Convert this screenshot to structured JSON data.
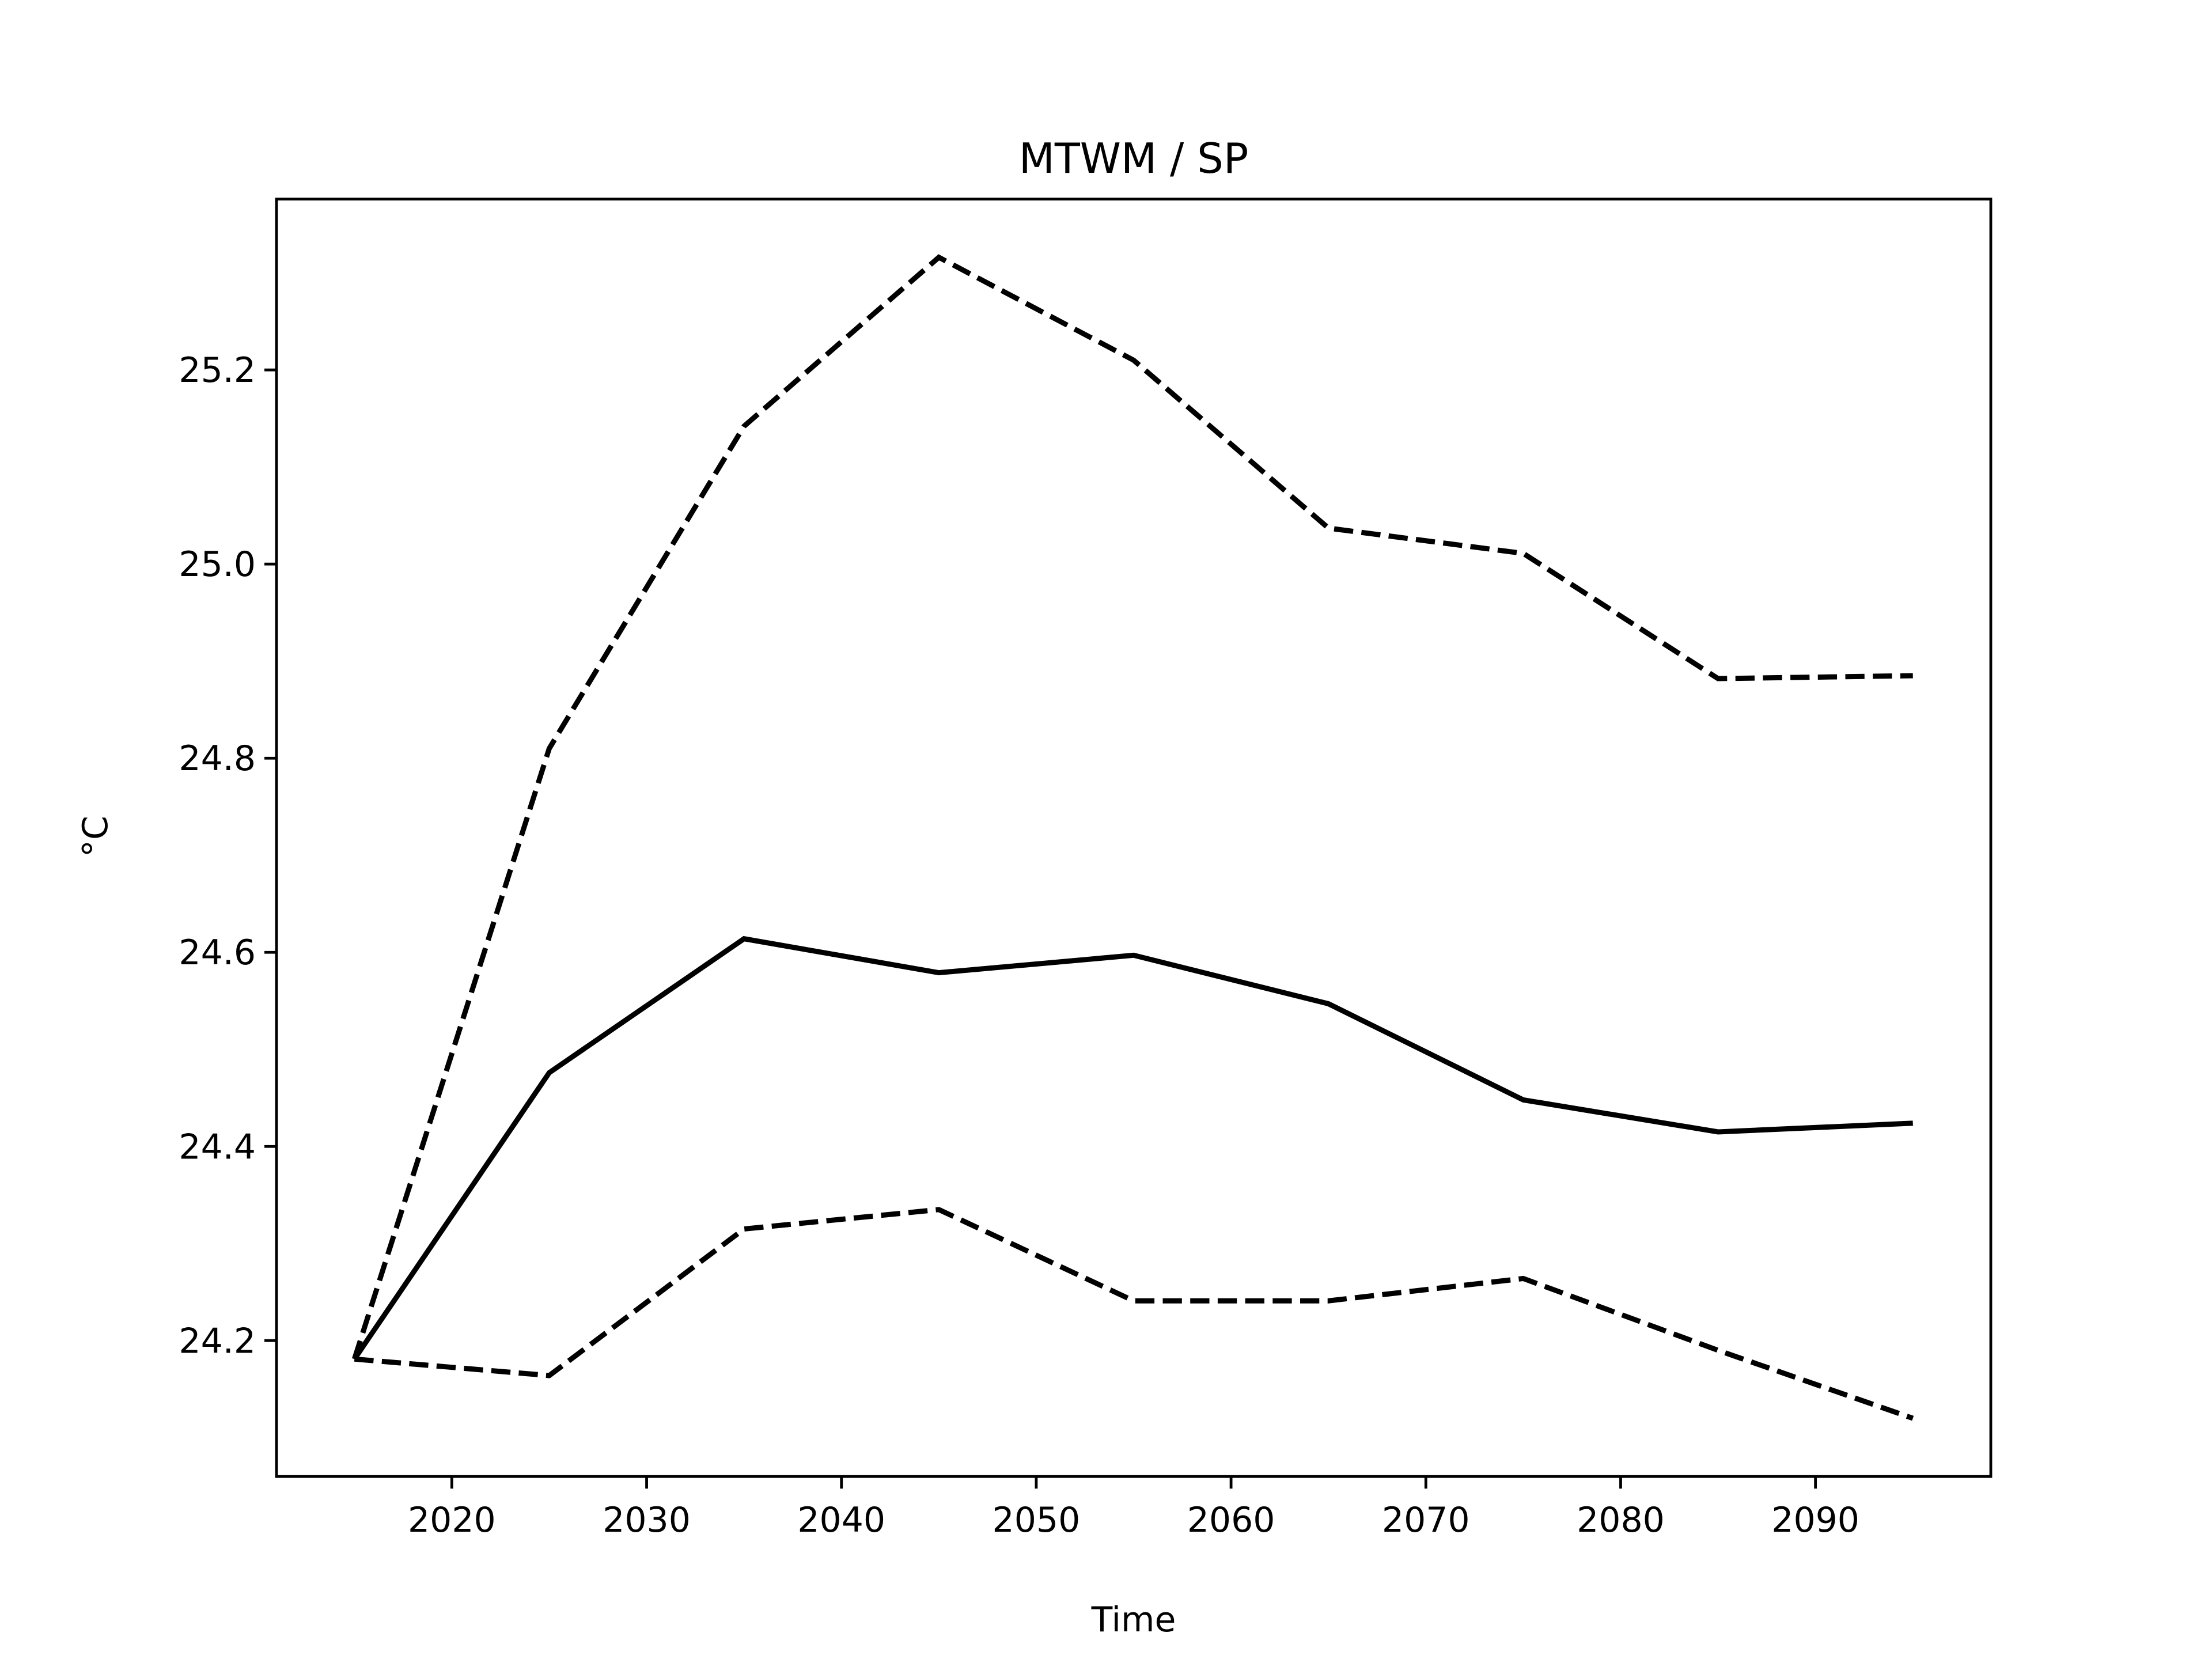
{
  "chart_data": {
    "type": "line",
    "title": "MTWM / SP",
    "xlabel": "Time",
    "ylabel": "°C",
    "x": [
      2015,
      2025,
      2035,
      2045,
      2055,
      2065,
      2075,
      2085,
      2095
    ],
    "series": [
      {
        "color": "#000000",
        "dash": false,
        "values": [
          24.181,
          24.476,
          24.614,
          24.579,
          24.597,
          24.547,
          24.448,
          24.415,
          24.424
        ]
      },
      {
        "color": "#000000",
        "dash": true,
        "values": [
          24.181,
          24.81,
          25.142,
          25.316,
          25.21,
          25.037,
          25.011,
          24.882,
          24.885
        ]
      },
      {
        "color": "#000000",
        "dash": true,
        "values": [
          24.181,
          24.164,
          24.315,
          24.335,
          24.241,
          24.241,
          24.264,
          24.19,
          24.12
        ]
      }
    ],
    "xlim": [
      2011,
      2099
    ],
    "xticks": [
      2020,
      2030,
      2040,
      2050,
      2060,
      2070,
      2080,
      2090
    ],
    "ylim": [
      24.06,
      25.376
    ],
    "yticks": [
      {
        "value": 24.2,
        "label": "24.2"
      },
      {
        "value": 24.4,
        "label": "24.4"
      },
      {
        "value": 24.6,
        "label": "24.6"
      },
      {
        "value": 24.8,
        "label": "24.8"
      },
      {
        "value": 25.0,
        "label": "25.0"
      },
      {
        "value": 25.2,
        "label": "25.2"
      }
    ],
    "grid": false
  }
}
